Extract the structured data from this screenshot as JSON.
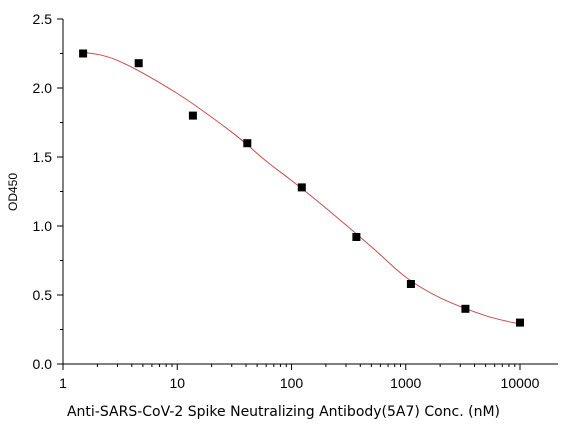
{
  "chart_data": {
    "type": "scatter",
    "xlabel": "Anti-SARS-CoV-2 Spike Neutralizing Antibody(5A7) Conc. (nM)",
    "ylabel": "OD450",
    "xscale": "log",
    "xlim": [
      1,
      10000
    ],
    "ylim": [
      0,
      2.5
    ],
    "x_ticks": [
      1,
      10,
      100,
      1000,
      10000
    ],
    "x_tick_labels": [
      "1",
      "10",
      "100",
      "1000",
      "10000"
    ],
    "y_ticks": [
      0,
      0.5,
      1.0,
      1.5,
      2.0,
      2.5
    ],
    "y_tick_labels": [
      "0.0",
      "0.5",
      "1.0",
      "1.5",
      "2.0",
      "2.5"
    ],
    "grid": false,
    "legend": "none",
    "series": [
      {
        "marker": "square",
        "color": "#000000",
        "x": [
          1.5,
          4.6,
          13.7,
          41,
          123,
          370,
          1110,
          3330,
          10000
        ],
        "y": [
          2.25,
          2.18,
          1.8,
          1.6,
          1.28,
          0.92,
          0.58,
          0.4,
          0.3
        ]
      }
    ],
    "fit_curve": {
      "color": "#c0504d",
      "x": [
        1.5,
        3,
        10,
        30,
        60,
        100,
        200,
        500,
        1000,
        2000,
        5000,
        10000
      ],
      "y": [
        2.26,
        2.2,
        1.96,
        1.68,
        1.47,
        1.33,
        1.13,
        0.85,
        0.63,
        0.48,
        0.35,
        0.29
      ]
    }
  }
}
